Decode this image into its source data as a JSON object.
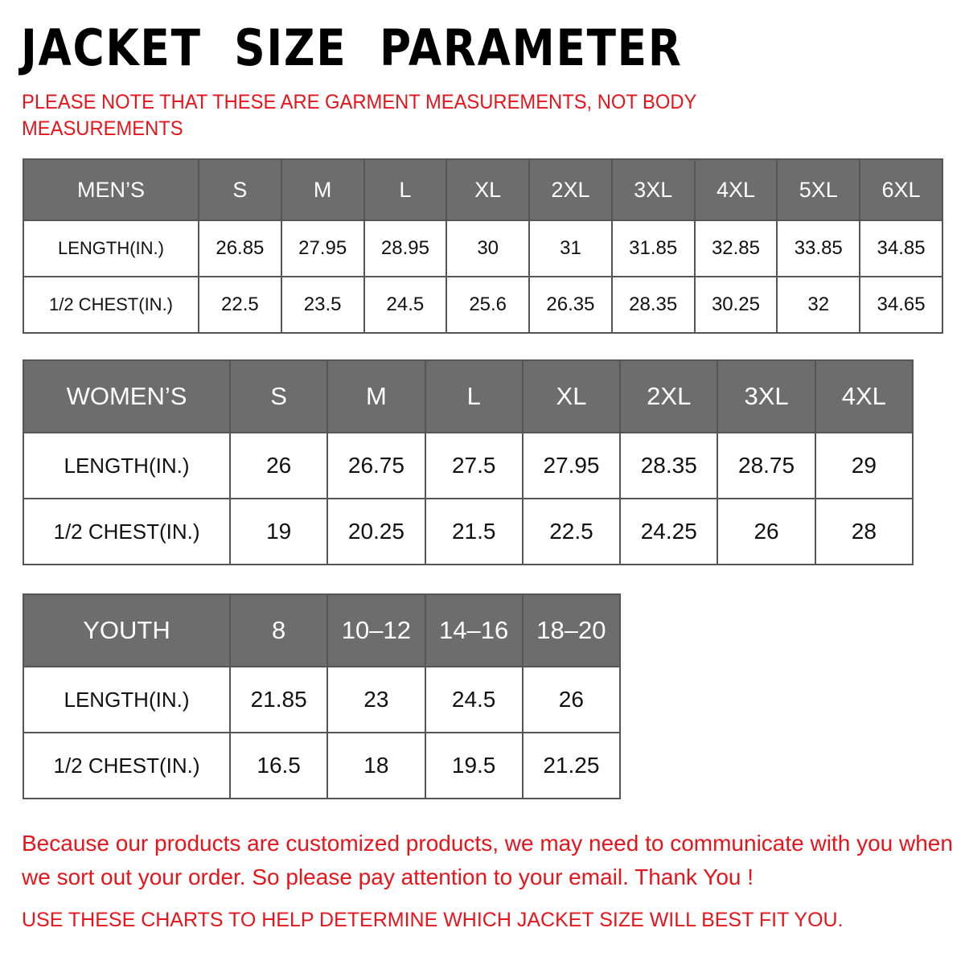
{
  "title": "JACKET  SIZE  PARAMETER",
  "note": "PLEASE NOTE THAT THESE ARE GARMENT MEASUREMENTS, NOT BODY MEASUREMENTS",
  "colors": {
    "header_bg": "#6d6d6d",
    "note_red": "#e8141b"
  },
  "tables": [
    {
      "id": "men",
      "headers": [
        "MEN’S",
        "S",
        "M",
        "L",
        "XL",
        "2XL",
        "3XL",
        "4XL",
        "5XL",
        "6XL"
      ],
      "rows": [
        [
          "LENGTH(IN.)",
          "26.85",
          "27.95",
          "28.95",
          "30",
          "31",
          "31.85",
          "32.85",
          "33.85",
          "34.85"
        ],
        [
          "1/2 CHEST(IN.)",
          "22.5",
          "23.5",
          "24.5",
          "25.6",
          "26.35",
          "28.35",
          "30.25",
          "32",
          "34.65"
        ]
      ]
    },
    {
      "id": "women",
      "headers": [
        "WOMEN’S",
        "S",
        "M",
        "L",
        "XL",
        "2XL",
        "3XL",
        "4XL"
      ],
      "rows": [
        [
          "LENGTH(IN.)",
          "26",
          "26.75",
          "27.5",
          "27.95",
          "28.35",
          "28.75",
          "29"
        ],
        [
          "1/2 CHEST(IN.)",
          "19",
          "20.25",
          "21.5",
          "22.5",
          "24.25",
          "26",
          "28"
        ]
      ]
    },
    {
      "id": "youth",
      "headers": [
        "YOUTH",
        "8",
        "10–12",
        "14–16",
        "18–20"
      ],
      "rows": [
        [
          "LENGTH(IN.)",
          "21.85",
          "23",
          "24.5",
          "26"
        ],
        [
          "1/2 CHEST(IN.)",
          "16.5",
          "18",
          "19.5",
          "21.25"
        ]
      ]
    }
  ],
  "footer": {
    "message": "Because our products are customized products, we may need to communicate with you when we sort out your order. So please pay attention to your email. Thank You !",
    "advice": "USE THESE CHARTS TO HELP DETERMINE WHICH JACKET SIZE WILL BEST FIT YOU."
  }
}
